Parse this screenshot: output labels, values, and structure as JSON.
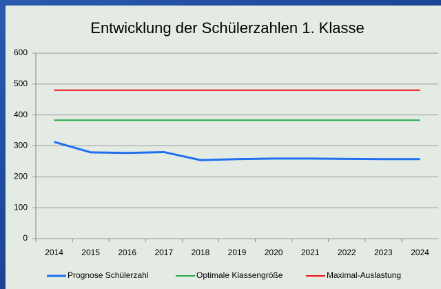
{
  "chart_data": {
    "type": "line",
    "title": "Entwicklung der Schülerzahlen 1. Klasse",
    "categories": [
      "2014",
      "2015",
      "2016",
      "2017",
      "2018",
      "2019",
      "2020",
      "2021",
      "2022",
      "2023",
      "2024"
    ],
    "series": [
      {
        "name": "Prognose Schülerzahl",
        "color": "#1f6ff0",
        "values": [
          313,
          279,
          277,
          280,
          254,
          257,
          259,
          259,
          258,
          257,
          257
        ]
      },
      {
        "name": "Optimale Klassengröße",
        "color": "#22aa44",
        "values": [
          383,
          383,
          383,
          383,
          383,
          383,
          383,
          383,
          383,
          383,
          383
        ]
      },
      {
        "name": "Maximal-Auslastung",
        "color": "#ee1111",
        "values": [
          480,
          480,
          480,
          480,
          480,
          480,
          480,
          480,
          480,
          480,
          480
        ]
      }
    ],
    "ylim": [
      0,
      600
    ],
    "yticks": [
      0,
      100,
      200,
      300,
      400,
      500,
      600
    ],
    "grid": true,
    "legend": "bottom"
  }
}
